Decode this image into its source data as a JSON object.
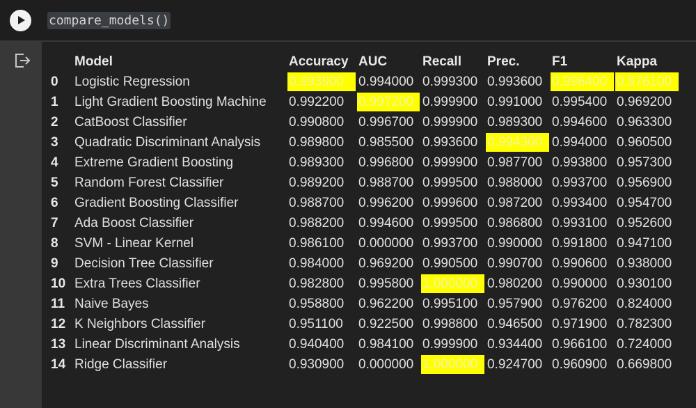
{
  "code_cell": {
    "code": "compare_models()"
  },
  "colors": {
    "highlight": "#ffff00",
    "output_background": "#212121",
    "input_background": "#1e1e1e"
  },
  "icons": {
    "run": "play-icon",
    "output": "output-exit-icon"
  },
  "table": {
    "columns": [
      "Model",
      "Accuracy",
      "AUC",
      "Recall",
      "Prec.",
      "F1",
      "Kappa"
    ],
    "rows": [
      {
        "index": "0",
        "model": "Logistic Regression",
        "accuracy": "0.993900",
        "auc": "0.994000",
        "recall": "0.999300",
        "prec": "0.993600",
        "f1": "0.996400",
        "kappa": "0.976100",
        "highlighted": [
          "accuracy",
          "f1",
          "kappa"
        ]
      },
      {
        "index": "1",
        "model": "Light Gradient Boosting Machine",
        "accuracy": "0.992200",
        "auc": "0.997200",
        "recall": "0.999900",
        "prec": "0.991000",
        "f1": "0.995400",
        "kappa": "0.969200",
        "highlighted": [
          "auc"
        ]
      },
      {
        "index": "2",
        "model": "CatBoost Classifier",
        "accuracy": "0.990800",
        "auc": "0.996700",
        "recall": "0.999900",
        "prec": "0.989300",
        "f1": "0.994600",
        "kappa": "0.963300",
        "highlighted": []
      },
      {
        "index": "3",
        "model": "Quadratic Discriminant Analysis",
        "accuracy": "0.989800",
        "auc": "0.985500",
        "recall": "0.993600",
        "prec": "0.994300",
        "f1": "0.994000",
        "kappa": "0.960500",
        "highlighted": [
          "prec"
        ]
      },
      {
        "index": "4",
        "model": "Extreme Gradient Boosting",
        "accuracy": "0.989300",
        "auc": "0.996800",
        "recall": "0.999900",
        "prec": "0.987700",
        "f1": "0.993800",
        "kappa": "0.957300",
        "highlighted": []
      },
      {
        "index": "5",
        "model": "Random Forest Classifier",
        "accuracy": "0.989200",
        "auc": "0.988700",
        "recall": "0.999500",
        "prec": "0.988000",
        "f1": "0.993700",
        "kappa": "0.956900",
        "highlighted": []
      },
      {
        "index": "6",
        "model": "Gradient Boosting Classifier",
        "accuracy": "0.988700",
        "auc": "0.996200",
        "recall": "0.999600",
        "prec": "0.987200",
        "f1": "0.993400",
        "kappa": "0.954700",
        "highlighted": []
      },
      {
        "index": "7",
        "model": "Ada Boost Classifier",
        "accuracy": "0.988200",
        "auc": "0.994600",
        "recall": "0.999500",
        "prec": "0.986800",
        "f1": "0.993100",
        "kappa": "0.952600",
        "highlighted": []
      },
      {
        "index": "8",
        "model": "SVM - Linear Kernel",
        "accuracy": "0.986100",
        "auc": "0.000000",
        "recall": "0.993700",
        "prec": "0.990000",
        "f1": "0.991800",
        "kappa": "0.947100",
        "highlighted": []
      },
      {
        "index": "9",
        "model": "Decision Tree Classifier",
        "accuracy": "0.984000",
        "auc": "0.969200",
        "recall": "0.990500",
        "prec": "0.990700",
        "f1": "0.990600",
        "kappa": "0.938000",
        "highlighted": []
      },
      {
        "index": "10",
        "model": "Extra Trees Classifier",
        "accuracy": "0.982800",
        "auc": "0.995800",
        "recall": "1.000000",
        "prec": "0.980200",
        "f1": "0.990000",
        "kappa": "0.930100",
        "highlighted": [
          "recall"
        ]
      },
      {
        "index": "11",
        "model": "Naive Bayes",
        "accuracy": "0.958800",
        "auc": "0.962200",
        "recall": "0.995100",
        "prec": "0.957900",
        "f1": "0.976200",
        "kappa": "0.824000",
        "highlighted": []
      },
      {
        "index": "12",
        "model": "K Neighbors Classifier",
        "accuracy": "0.951100",
        "auc": "0.922500",
        "recall": "0.998800",
        "prec": "0.946500",
        "f1": "0.971900",
        "kappa": "0.782300",
        "highlighted": []
      },
      {
        "index": "13",
        "model": "Linear Discriminant Analysis",
        "accuracy": "0.940400",
        "auc": "0.984100",
        "recall": "0.999900",
        "prec": "0.934400",
        "f1": "0.966100",
        "kappa": "0.724000",
        "highlighted": []
      },
      {
        "index": "14",
        "model": "Ridge Classifier",
        "accuracy": "0.930900",
        "auc": "0.000000",
        "recall": "1.000000",
        "prec": "0.924700",
        "f1": "0.960900",
        "kappa": "0.669800",
        "highlighted": [
          "recall"
        ]
      }
    ]
  }
}
